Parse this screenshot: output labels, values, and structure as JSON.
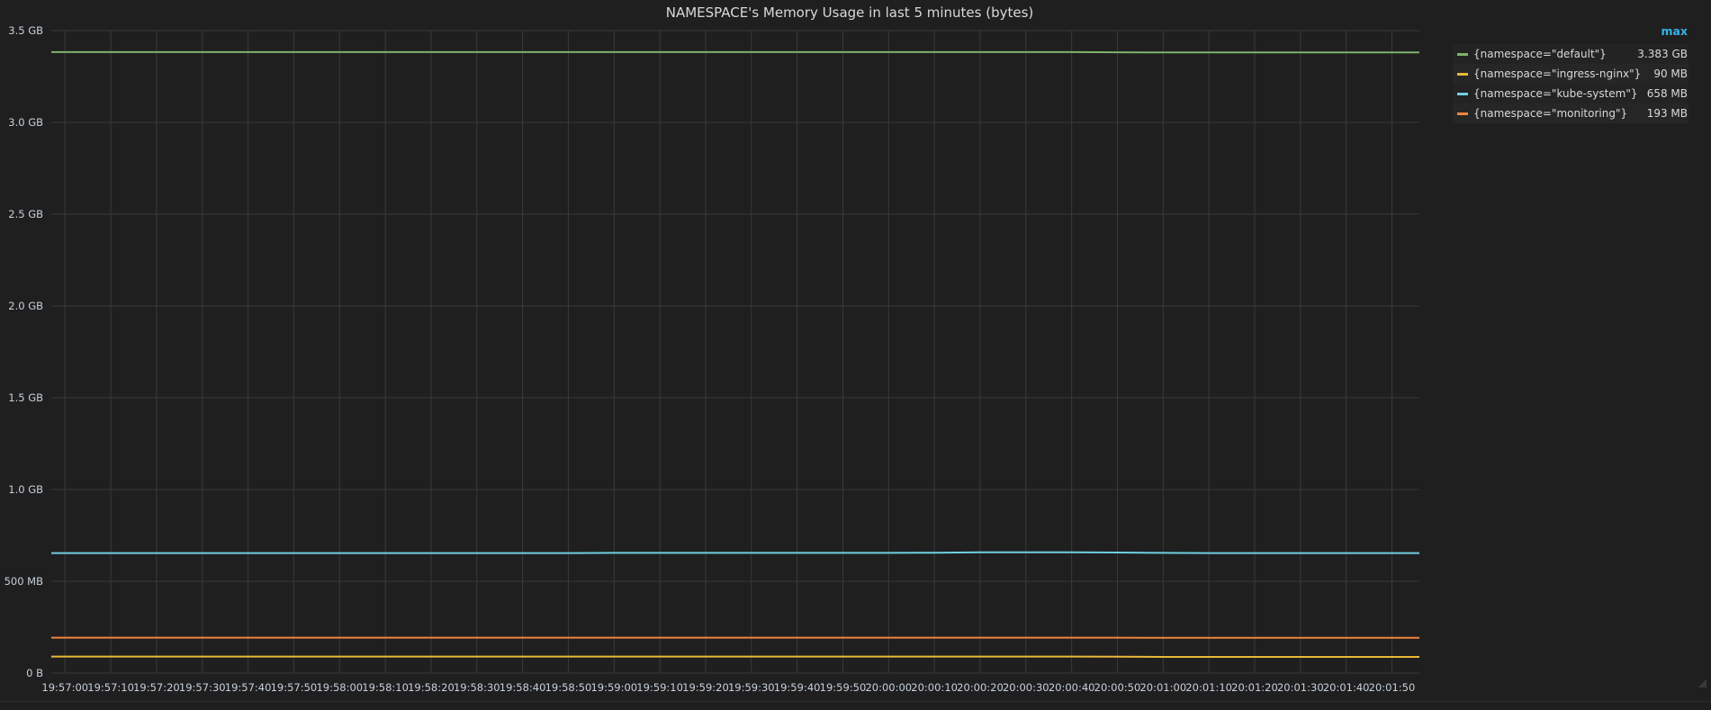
{
  "panel": {
    "title": "NAMESPACE's Memory Usage in last 5 minutes (bytes)"
  },
  "legend": {
    "column_header": "max",
    "items": [
      {
        "label": "{namespace=\"default\"}",
        "max": "3.383 GB",
        "color": "#7eb26d"
      },
      {
        "label": "{namespace=\"ingress-nginx\"}",
        "max": "90 MB",
        "color": "#eab839"
      },
      {
        "label": "{namespace=\"kube-system\"}",
        "max": "658 MB",
        "color": "#6ed0e0"
      },
      {
        "label": "{namespace=\"monitoring\"}",
        "max": "193 MB",
        "color": "#ef843c"
      }
    ]
  },
  "chart_data": {
    "type": "line",
    "title": "NAMESPACE's Memory Usage in last 5 minutes (bytes)",
    "xlabel": "",
    "ylabel": "",
    "ylim": [
      0,
      3.5
    ],
    "y_unit": "GB",
    "y_ticks": [
      {
        "value": 0,
        "label": "0 B"
      },
      {
        "value": 0.5,
        "label": "500 MB"
      },
      {
        "value": 1.0,
        "label": "1.0 GB"
      },
      {
        "value": 1.5,
        "label": "1.5 GB"
      },
      {
        "value": 2.0,
        "label": "2.0 GB"
      },
      {
        "value": 2.5,
        "label": "2.5 GB"
      },
      {
        "value": 3.0,
        "label": "3.0 GB"
      },
      {
        "value": 3.5,
        "label": "3.5 GB"
      }
    ],
    "x_tick_labels": [
      "19:57:00",
      "19:57:10",
      "19:57:20",
      "19:57:30",
      "19:57:40",
      "19:57:50",
      "19:58:00",
      "19:58:10",
      "19:58:20",
      "19:58:30",
      "19:58:40",
      "19:58:50",
      "19:59:00",
      "19:59:10",
      "19:59:20",
      "19:59:30",
      "19:59:40",
      "19:59:50",
      "20:00:00",
      "20:00:10",
      "20:00:20",
      "20:00:30",
      "20:00:40",
      "20:00:50",
      "20:01:00",
      "20:01:10",
      "20:01:20",
      "20:01:30",
      "20:01:40",
      "20:01:50"
    ],
    "x": [
      "19:56:57",
      "19:57:00",
      "19:57:10",
      "19:57:20",
      "19:57:30",
      "19:57:40",
      "19:57:50",
      "19:58:00",
      "19:58:10",
      "19:58:20",
      "19:58:30",
      "19:58:40",
      "19:58:50",
      "19:59:00",
      "19:59:10",
      "19:59:20",
      "19:59:30",
      "19:59:40",
      "19:59:50",
      "20:00:00",
      "20:00:10",
      "20:00:20",
      "20:00:30",
      "20:00:40",
      "20:00:50",
      "20:01:00",
      "20:01:10",
      "20:01:20",
      "20:01:30",
      "20:01:40",
      "20:01:50",
      "20:01:56"
    ],
    "series": [
      {
        "name": "{namespace=\"default\"}",
        "color": "#7eb26d",
        "values": [
          3.383,
          3.383,
          3.383,
          3.383,
          3.383,
          3.383,
          3.383,
          3.383,
          3.383,
          3.383,
          3.383,
          3.383,
          3.383,
          3.383,
          3.383,
          3.383,
          3.383,
          3.383,
          3.383,
          3.383,
          3.383,
          3.383,
          3.383,
          3.383,
          3.382,
          3.381,
          3.381,
          3.381,
          3.381,
          3.381,
          3.381,
          3.381
        ]
      },
      {
        "name": "{namespace=\"ingress-nginx\"}",
        "color": "#eab839",
        "values": [
          0.09,
          0.09,
          0.09,
          0.09,
          0.09,
          0.09,
          0.09,
          0.09,
          0.09,
          0.09,
          0.09,
          0.09,
          0.09,
          0.09,
          0.09,
          0.09,
          0.09,
          0.09,
          0.09,
          0.09,
          0.09,
          0.09,
          0.09,
          0.09,
          0.089,
          0.088,
          0.088,
          0.088,
          0.088,
          0.088,
          0.088,
          0.088
        ]
      },
      {
        "name": "{namespace=\"kube-system\"}",
        "color": "#6ed0e0",
        "values": [
          0.654,
          0.654,
          0.654,
          0.654,
          0.654,
          0.654,
          0.654,
          0.654,
          0.654,
          0.654,
          0.654,
          0.654,
          0.654,
          0.655,
          0.655,
          0.655,
          0.655,
          0.655,
          0.655,
          0.655,
          0.656,
          0.658,
          0.658,
          0.658,
          0.657,
          0.655,
          0.654,
          0.654,
          0.654,
          0.654,
          0.654,
          0.654
        ]
      },
      {
        "name": "{namespace=\"monitoring\"}",
        "color": "#ef843c",
        "values": [
          0.193,
          0.193,
          0.193,
          0.193,
          0.193,
          0.193,
          0.193,
          0.193,
          0.193,
          0.193,
          0.193,
          0.193,
          0.193,
          0.193,
          0.193,
          0.193,
          0.193,
          0.193,
          0.193,
          0.193,
          0.193,
          0.193,
          0.193,
          0.193,
          0.193,
          0.192,
          0.192,
          0.192,
          0.192,
          0.192,
          0.192,
          0.192
        ]
      }
    ],
    "grid": true,
    "legend_position": "right"
  }
}
